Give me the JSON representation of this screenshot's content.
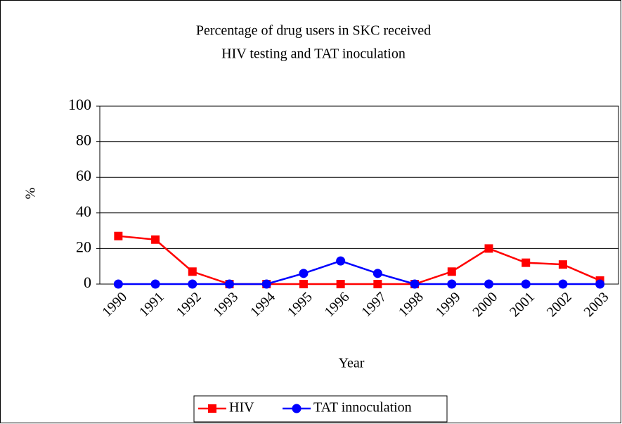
{
  "chart_data": {
    "type": "line",
    "title": [
      "Percentage of drug users in SKC received",
      "HIV testing and TAT inoculation"
    ],
    "x_label": "Year",
    "y_label": "%",
    "categories": [
      "1990",
      "1991",
      "1992",
      "1993",
      "1994",
      "1995",
      "1996",
      "1997",
      "1998",
      "1999",
      "2000",
      "2001",
      "2002",
      "2003"
    ],
    "series": [
      {
        "name": "HIV",
        "color": "#ff0000",
        "marker": "square",
        "values": [
          27,
          25,
          7,
          0,
          0,
          0,
          0,
          0,
          0,
          7,
          20,
          12,
          11,
          2
        ]
      },
      {
        "name": "TAT innoculation",
        "color": "#0000ff",
        "marker": "circle",
        "values": [
          0,
          0,
          0,
          0,
          0,
          6,
          13,
          6,
          0,
          0,
          0,
          0,
          0,
          0
        ]
      }
    ],
    "ylim": [
      0,
      100
    ],
    "yticks": [
      0,
      20,
      40,
      60,
      80,
      100
    ],
    "grid": true,
    "legend": "bottom"
  }
}
